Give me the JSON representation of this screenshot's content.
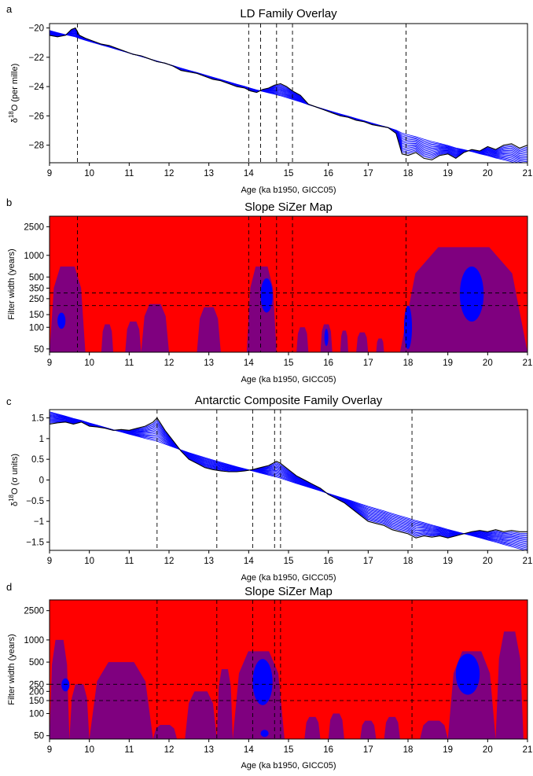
{
  "colors": {
    "red": "#ff0000",
    "purple": "#7f007f",
    "blue": "#0000ff",
    "black": "#000000",
    "overlay_blue": "#0000ff"
  },
  "chart_data": [
    {
      "id": "a",
      "panel_letter": "a",
      "type": "line",
      "title": "LD Family Overlay",
      "xlabel": "Age (ka b1950, GICC05)",
      "ylabel_prefix": "δ",
      "ylabel_sup": "18",
      "ylabel_suffix": "O (per mille)",
      "xlim": [
        9,
        21
      ],
      "ylim": [
        -29.2,
        -19.7
      ],
      "xticks": [
        "9",
        "10",
        "11",
        "12",
        "13",
        "14",
        "15",
        "16",
        "17",
        "18",
        "19",
        "20",
        "21"
      ],
      "yticks": [
        -28,
        -26,
        -24,
        -22,
        -20
      ],
      "ytick_labels": [
        "−28",
        "−26",
        "−24",
        "−22",
        "−20"
      ],
      "vlines": [
        9.7,
        14.0,
        14.3,
        14.7,
        15.1,
        17.95
      ],
      "series": [
        {
          "x": [
            9.0,
            9.2,
            9.4,
            9.55,
            9.65,
            9.75,
            9.9,
            10.1,
            10.3,
            10.5,
            10.7,
            10.9,
            11.1,
            11.3,
            11.5,
            11.7,
            11.9,
            12.1,
            12.3,
            12.5,
            12.7,
            12.9,
            13.1,
            13.3,
            13.5,
            13.7,
            13.9,
            14.05,
            14.2,
            14.35,
            14.5,
            14.65,
            14.8,
            14.95,
            15.1,
            15.3,
            15.5,
            15.7,
            15.9,
            16.1,
            16.3,
            16.5,
            16.7,
            16.9,
            17.1,
            17.3,
            17.5,
            17.7,
            17.85,
            18.0,
            18.2,
            18.4,
            18.6,
            18.8,
            19.0,
            19.2,
            19.4,
            19.6,
            19.8,
            20.0,
            20.2,
            20.4,
            20.6,
            20.8,
            21.0
          ],
          "y": [
            -20.5,
            -20.6,
            -20.5,
            -20.1,
            -20.0,
            -20.5,
            -20.7,
            -20.9,
            -21.1,
            -21.2,
            -21.4,
            -21.6,
            -21.8,
            -21.9,
            -22.1,
            -22.3,
            -22.4,
            -22.6,
            -22.9,
            -23.0,
            -23.1,
            -23.3,
            -23.5,
            -23.6,
            -23.8,
            -24.0,
            -24.1,
            -24.3,
            -24.4,
            -24.2,
            -24.1,
            -23.9,
            -23.8,
            -24.0,
            -24.3,
            -24.6,
            -25.2,
            -25.4,
            -25.6,
            -25.8,
            -26.0,
            -26.1,
            -26.3,
            -26.4,
            -26.6,
            -26.7,
            -26.8,
            -27.2,
            -28.6,
            -28.7,
            -28.5,
            -28.9,
            -29.0,
            -28.7,
            -28.6,
            -28.9,
            -28.5,
            -28.3,
            -28.4,
            -28.1,
            -28.3,
            -28.0,
            -27.9,
            -28.2,
            -28.0
          ]
        }
      ]
    },
    {
      "id": "b",
      "panel_letter": "b",
      "type": "heatmap",
      "title": "Slope SiZer Map",
      "xlabel": "Age (ka b1950, GICC05)",
      "ylabel": "Filter width (years)",
      "xlim": [
        9,
        21
      ],
      "ylim_log": [
        45,
        3500
      ],
      "xticks": [
        "9",
        "10",
        "11",
        "12",
        "13",
        "14",
        "15",
        "16",
        "17",
        "18",
        "19",
        "20",
        "21"
      ],
      "yticks": [
        50,
        100,
        150,
        250,
        350,
        500,
        1000,
        2500
      ],
      "vlines": [
        9.7,
        14.0,
        14.3,
        14.7,
        15.1,
        17.95
      ],
      "hlines": [
        200,
        300
      ],
      "purple_regions": [
        {
          "x0": 9.0,
          "x1": 9.9,
          "h": 700
        },
        {
          "x0": 10.3,
          "x1": 10.6,
          "h": 110
        },
        {
          "x0": 10.9,
          "x1": 11.3,
          "h": 120
        },
        {
          "x0": 11.3,
          "x1": 12.0,
          "h": 210
        },
        {
          "x0": 12.7,
          "x1": 13.3,
          "h": 190
        },
        {
          "x0": 13.95,
          "x1": 14.7,
          "h": 700
        },
        {
          "x0": 15.2,
          "x1": 15.5,
          "h": 100
        },
        {
          "x0": 15.8,
          "x1": 16.1,
          "h": 110
        },
        {
          "x0": 16.3,
          "x1": 16.5,
          "h": 90
        },
        {
          "x0": 16.7,
          "x1": 17.0,
          "h": 85
        },
        {
          "x0": 17.2,
          "x1": 17.4,
          "h": 70
        },
        {
          "x0": 17.8,
          "x1": 21.0,
          "h": 1300
        }
      ],
      "blue_regions": [
        {
          "x0": 9.2,
          "x1": 9.4,
          "ylo": 95,
          "yhi": 160
        },
        {
          "x0": 14.3,
          "x1": 14.6,
          "ylo": 160,
          "yhi": 480
        },
        {
          "x0": 15.9,
          "x1": 16.0,
          "ylo": 55,
          "yhi": 95
        },
        {
          "x0": 17.9,
          "x1": 18.1,
          "ylo": 50,
          "yhi": 200
        },
        {
          "x0": 19.3,
          "x1": 19.9,
          "ylo": 120,
          "yhi": 700
        }
      ]
    },
    {
      "id": "c",
      "panel_letter": "c",
      "type": "line",
      "title": "Antarctic Composite Family Overlay",
      "xlabel": "Age (ka b1950, GICC05)",
      "ylabel_prefix": "δ",
      "ylabel_sup": "18",
      "ylabel_suffix": "O (σ units)",
      "xlim": [
        9,
        21
      ],
      "ylim": [
        -1.7,
        1.7
      ],
      "xticks": [
        "9",
        "10",
        "11",
        "12",
        "13",
        "14",
        "15",
        "16",
        "17",
        "18",
        "19",
        "20",
        "21"
      ],
      "yticks": [
        -1.5,
        -1,
        -0.5,
        0,
        0.5,
        1,
        1.5
      ],
      "ytick_labels": [
        "−1.5",
        "−1",
        "−0.5",
        "0",
        "0.5",
        "1",
        "1.5"
      ],
      "vlines": [
        11.7,
        13.2,
        14.1,
        14.65,
        14.8,
        18.1
      ],
      "series": [
        {
          "x": [
            9.0,
            9.2,
            9.4,
            9.6,
            9.8,
            10.0,
            10.2,
            10.4,
            10.6,
            10.8,
            11.0,
            11.2,
            11.4,
            11.6,
            11.7,
            11.8,
            11.9,
            12.1,
            12.3,
            12.5,
            12.7,
            12.9,
            13.1,
            13.3,
            13.5,
            13.7,
            13.9,
            14.1,
            14.3,
            14.5,
            14.7,
            14.8,
            15.0,
            15.2,
            15.4,
            15.6,
            15.8,
            16.0,
            16.2,
            16.4,
            16.6,
            16.8,
            17.0,
            17.2,
            17.4,
            17.6,
            17.8,
            18.0,
            18.2,
            18.4,
            18.6,
            18.8,
            19.0,
            19.2,
            19.4,
            19.6,
            19.8,
            20.0,
            20.2,
            20.4,
            20.6,
            20.8,
            21.0
          ],
          "y": [
            1.35,
            1.38,
            1.4,
            1.35,
            1.4,
            1.3,
            1.28,
            1.25,
            1.2,
            1.22,
            1.2,
            1.25,
            1.3,
            1.4,
            1.5,
            1.35,
            1.2,
            0.95,
            0.7,
            0.5,
            0.4,
            0.3,
            0.25,
            0.22,
            0.2,
            0.2,
            0.22,
            0.25,
            0.3,
            0.35,
            0.45,
            0.4,
            0.25,
            0.1,
            0.0,
            -0.1,
            -0.2,
            -0.35,
            -0.45,
            -0.55,
            -0.7,
            -0.85,
            -1.0,
            -1.05,
            -1.1,
            -1.2,
            -1.25,
            -1.3,
            -1.4,
            -1.35,
            -1.38,
            -1.35,
            -1.4,
            -1.35,
            -1.3,
            -1.25,
            -1.22,
            -1.25,
            -1.2,
            -1.25,
            -1.22,
            -1.25,
            -1.25
          ]
        }
      ]
    },
    {
      "id": "d",
      "panel_letter": "d",
      "type": "heatmap",
      "title": "Slope SiZer Map",
      "xlabel": "Age (ka b1950, GICC05)",
      "ylabel": "Filter width (years)",
      "xlim": [
        9,
        21
      ],
      "ylim_log": [
        45,
        3500
      ],
      "xticks": [
        "9",
        "10",
        "11",
        "12",
        "13",
        "14",
        "15",
        "16",
        "17",
        "18",
        "19",
        "20",
        "21"
      ],
      "yticks": [
        50,
        100,
        150,
        200,
        250,
        500,
        1000,
        2500
      ],
      "vlines": [
        11.7,
        13.2,
        14.1,
        14.65,
        14.8,
        18.1
      ],
      "hlines": [
        150,
        250
      ],
      "purple_regions": [
        {
          "x0": 9.0,
          "x1": 9.5,
          "h": 1000
        },
        {
          "x0": 9.5,
          "x1": 10.0,
          "h": 250
        },
        {
          "x0": 10.0,
          "x1": 11.6,
          "h": 500
        },
        {
          "x0": 11.6,
          "x1": 12.2,
          "h": 70
        },
        {
          "x0": 12.4,
          "x1": 13.2,
          "h": 200
        },
        {
          "x0": 13.2,
          "x1": 13.6,
          "h": 400
        },
        {
          "x0": 13.6,
          "x1": 14.9,
          "h": 700
        },
        {
          "x0": 15.4,
          "x1": 15.8,
          "h": 90
        },
        {
          "x0": 16.0,
          "x1": 16.4,
          "h": 100
        },
        {
          "x0": 16.8,
          "x1": 17.2,
          "h": 80
        },
        {
          "x0": 17.4,
          "x1": 17.8,
          "h": 90
        },
        {
          "x0": 18.3,
          "x1": 19.0,
          "h": 80
        },
        {
          "x0": 19.0,
          "x1": 20.2,
          "h": 700
        },
        {
          "x0": 20.2,
          "x1": 20.9,
          "h": 1300
        }
      ],
      "blue_regions": [
        {
          "x0": 9.3,
          "x1": 9.5,
          "ylo": 200,
          "yhi": 300
        },
        {
          "x0": 14.1,
          "x1": 14.6,
          "ylo": 130,
          "yhi": 550
        },
        {
          "x0": 19.2,
          "x1": 19.8,
          "ylo": 180,
          "yhi": 650
        },
        {
          "x0": 14.3,
          "x1": 14.5,
          "ylo": 48,
          "yhi": 60
        }
      ]
    }
  ]
}
